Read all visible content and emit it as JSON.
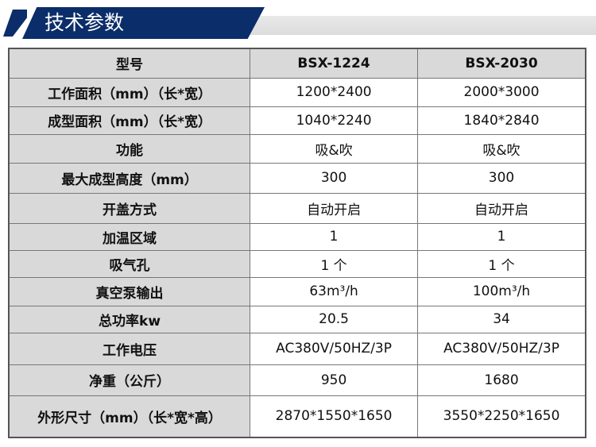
{
  "header": {
    "title": "技术参数",
    "accent": "#0b2d6a"
  },
  "table": {
    "columns": [
      "型号",
      "BSX-1224",
      "BSX-2030"
    ],
    "rows": [
      [
        "工作面积（mm）（长*宽）",
        "1200*2400",
        "2000*3000"
      ],
      [
        "成型面积（mm）（长*宽）",
        "1040*2240",
        "1840*2840"
      ],
      [
        "功能",
        "吸&吹",
        "吸&吹"
      ],
      [
        "最大成型高度（mm）",
        "300",
        "300"
      ],
      [
        "开盖方式",
        "自动开启",
        "自动开启"
      ],
      [
        "加温区域",
        "1",
        "1"
      ],
      [
        "吸气孔",
        "1 个",
        "1 个"
      ],
      [
        "真空泵输出",
        "63m³/h",
        "100m³/h"
      ],
      [
        "总功率kw",
        "20.5",
        "34"
      ],
      [
        "工作电压",
        "AC380V/50HZ/3P",
        "AC380V/50HZ/3P"
      ],
      [
        "净重（公斤）",
        "950",
        "1680"
      ],
      [
        "外形尺寸（mm）（长*宽*高）",
        "2870*1550*1650",
        "3550*2250*1650"
      ]
    ]
  }
}
